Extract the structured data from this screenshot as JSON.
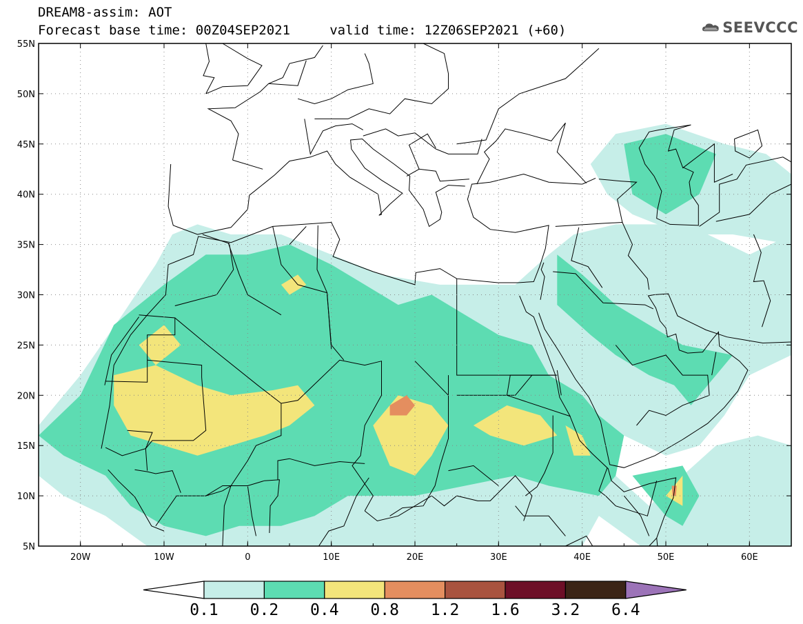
{
  "header": {
    "title_line1": "DREAM8-assim: AOT",
    "title_line2": "Forecast base time: 00Z04SEP2021     valid time: 12Z06SEP2021 (+60)",
    "logo_text": "SEEVCCC"
  },
  "map": {
    "lon_range": [
      -25,
      65
    ],
    "lat_range": [
      5,
      55
    ],
    "lat_ticks": [
      {
        "value": 55,
        "label": "55N"
      },
      {
        "value": 50,
        "label": "50N"
      },
      {
        "value": 45,
        "label": "45N"
      },
      {
        "value": 40,
        "label": "40N"
      },
      {
        "value": 35,
        "label": "35N"
      },
      {
        "value": 30,
        "label": "30N"
      },
      {
        "value": 25,
        "label": "25N"
      },
      {
        "value": 20,
        "label": "20N"
      },
      {
        "value": 15,
        "label": "15N"
      },
      {
        "value": 10,
        "label": "10N"
      },
      {
        "value": 5,
        "label": "5N"
      }
    ],
    "lon_ticks": [
      {
        "value": -20,
        "label": "20W"
      },
      {
        "value": -10,
        "label": "10W"
      },
      {
        "value": 0,
        "label": "0"
      },
      {
        "value": 10,
        "label": "10E"
      },
      {
        "value": 20,
        "label": "20E"
      },
      {
        "value": 30,
        "label": "30E"
      },
      {
        "value": 40,
        "label": "40E"
      },
      {
        "value": 50,
        "label": "50E"
      },
      {
        "value": 60,
        "label": "60E"
      }
    ],
    "field": "AOT",
    "colors": {
      "lt01": "#ffffff",
      "c1": "#c6eee8",
      "c2": "#5ddcb2",
      "c3": "#f3e57b",
      "c4": "#e48e5f",
      "c5": "#a9533f",
      "c6": "#6d0f27",
      "c7": "#3b2416",
      "c8": "#9c73b8"
    },
    "dust_contours": {
      "c1": [
        [
          [
            -25,
            17
          ],
          [
            -20,
            22
          ],
          [
            -15,
            28
          ],
          [
            -11,
            33
          ],
          [
            -9,
            36
          ],
          [
            -6,
            37
          ],
          [
            -2,
            36
          ],
          [
            4,
            36
          ],
          [
            10,
            34
          ],
          [
            16,
            32
          ],
          [
            23,
            31
          ],
          [
            28,
            31
          ],
          [
            32,
            31
          ],
          [
            36,
            34
          ],
          [
            39,
            36
          ],
          [
            44,
            37
          ],
          [
            49,
            37
          ],
          [
            55,
            36
          ],
          [
            60,
            34
          ],
          [
            65,
            36
          ],
          [
            65,
            24
          ],
          [
            60,
            22
          ],
          [
            57,
            18
          ],
          [
            54,
            15
          ],
          [
            50,
            14
          ],
          [
            45,
            16
          ],
          [
            44,
            12
          ],
          [
            48,
            9
          ],
          [
            52,
            12
          ],
          [
            56,
            15
          ],
          [
            61,
            16
          ],
          [
            65,
            15
          ],
          [
            65,
            5
          ],
          [
            47,
            5
          ],
          [
            42,
            8
          ],
          [
            40,
            5
          ],
          [
            -4,
            5
          ],
          [
            -12,
            5
          ],
          [
            -17,
            8
          ],
          [
            -22,
            10
          ],
          [
            -25,
            12
          ]
        ],
        [
          [
            41,
            43
          ],
          [
            44,
            46
          ],
          [
            50,
            47
          ],
          [
            57,
            45
          ],
          [
            62,
            44
          ],
          [
            65,
            42
          ],
          [
            65,
            35
          ],
          [
            58,
            36
          ],
          [
            52,
            36
          ],
          [
            46,
            38
          ],
          [
            43,
            40
          ]
        ]
      ],
      "c2": [
        [
          [
            -25,
            16
          ],
          [
            -20,
            20
          ],
          [
            -16,
            27
          ],
          [
            -10,
            31
          ],
          [
            -5,
            34
          ],
          [
            0,
            34
          ],
          [
            5,
            35
          ],
          [
            10,
            33
          ],
          [
            14,
            31
          ],
          [
            18,
            29
          ],
          [
            22,
            30
          ],
          [
            26,
            28
          ],
          [
            30,
            26
          ],
          [
            34,
            25
          ],
          [
            36,
            22
          ],
          [
            40,
            20
          ],
          [
            42,
            18
          ],
          [
            45,
            16
          ],
          [
            44,
            12
          ],
          [
            42,
            10
          ],
          [
            36,
            11
          ],
          [
            32,
            12
          ],
          [
            26,
            11
          ],
          [
            20,
            10
          ],
          [
            12,
            10
          ],
          [
            8,
            8
          ],
          [
            4,
            7
          ],
          [
            -1,
            7
          ],
          [
            -5,
            6
          ],
          [
            -10,
            7
          ],
          [
            -14,
            9
          ],
          [
            -17,
            12
          ],
          [
            -22,
            14
          ]
        ],
        [
          [
            37,
            34
          ],
          [
            40,
            32
          ],
          [
            44,
            29
          ],
          [
            48,
            27
          ],
          [
            52,
            25
          ],
          [
            58,
            24
          ],
          [
            56,
            22
          ],
          [
            53,
            19
          ],
          [
            51,
            21
          ],
          [
            48,
            22
          ],
          [
            44,
            24
          ],
          [
            41,
            26
          ],
          [
            37,
            29
          ]
        ],
        [
          [
            45,
            45
          ],
          [
            50,
            46
          ],
          [
            56,
            44
          ],
          [
            54,
            40
          ],
          [
            50,
            38
          ],
          [
            46,
            40
          ]
        ],
        [
          [
            46,
            12
          ],
          [
            50,
            8
          ],
          [
            52,
            7
          ],
          [
            54,
            10
          ],
          [
            52,
            13
          ]
        ]
      ],
      "c3": [
        [
          [
            -16,
            22
          ],
          [
            -11,
            23
          ],
          [
            -6,
            21
          ],
          [
            -2,
            20
          ],
          [
            3,
            20.5
          ],
          [
            6,
            21
          ],
          [
            8,
            19
          ],
          [
            5,
            17
          ],
          [
            2,
            16
          ],
          [
            -2,
            15
          ],
          [
            -6,
            14
          ],
          [
            -10,
            15
          ],
          [
            -14,
            16
          ],
          [
            -16,
            19
          ]
        ],
        [
          [
            15,
            17
          ],
          [
            18,
            20
          ],
          [
            22,
            19
          ],
          [
            24,
            17
          ],
          [
            22,
            14
          ],
          [
            20,
            12
          ],
          [
            17,
            13
          ]
        ],
        [
          [
            27,
            17
          ],
          [
            31,
            19
          ],
          [
            35,
            18
          ],
          [
            37,
            16
          ],
          [
            33,
            15
          ],
          [
            29,
            16
          ]
        ],
        [
          [
            -13,
            25
          ],
          [
            -10,
            27
          ],
          [
            -8,
            25
          ],
          [
            -11,
            23
          ]
        ],
        [
          [
            4,
            31
          ],
          [
            6,
            32
          ],
          [
            7,
            31
          ],
          [
            5,
            30
          ]
        ],
        [
          [
            38,
            17
          ],
          [
            40,
            16
          ],
          [
            41,
            14
          ],
          [
            39,
            14
          ]
        ],
        [
          [
            50,
            10
          ],
          [
            52,
            12
          ],
          [
            52,
            9
          ]
        ]
      ],
      "c4": [
        [
          [
            17,
            19
          ],
          [
            19,
            20
          ],
          [
            20,
            19
          ],
          [
            19,
            18
          ],
          [
            17,
            18
          ]
        ],
        [
          [
            50.7,
            11
          ],
          [
            51.3,
            11
          ],
          [
            51.2,
            10
          ],
          [
            50.8,
            10
          ]
        ]
      ]
    }
  },
  "colorbar": {
    "labels": [
      "0.1",
      "0.2",
      "0.4",
      "0.8",
      "1.2",
      "1.6",
      "3.2",
      "6.4"
    ],
    "bins": [
      {
        "color": "#c6eee8"
      },
      {
        "color": "#5ddcb2"
      },
      {
        "color": "#f3e57b"
      },
      {
        "color": "#e48e5f"
      },
      {
        "color": "#a9533f"
      },
      {
        "color": "#6d0f27"
      },
      {
        "color": "#3b2416"
      }
    ],
    "under_color": "#ffffff",
    "over_color": "#9c73b8"
  }
}
